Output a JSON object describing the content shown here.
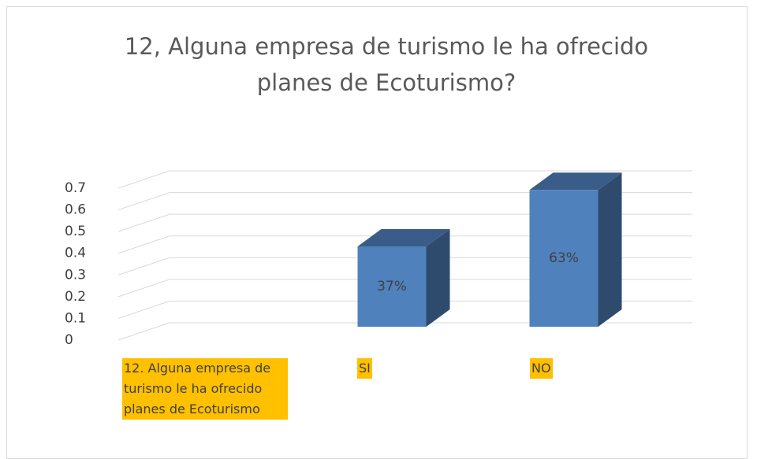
{
  "chart_data": {
    "type": "bar3d",
    "title": "12, Alguna empresa de turismo le ha ofrecido planes de Ecoturismo?",
    "categories": [
      "12.  Alguna empresa de turismo le ha ofrecido planes de Ecoturismo",
      "SI",
      "NO"
    ],
    "values": [
      null,
      0.37,
      0.63
    ],
    "value_labels": [
      null,
      "37%",
      "63%"
    ],
    "color": "#4f81bd",
    "ylim": [
      0,
      0.7
    ],
    "yticks": [
      0,
      0.1,
      0.2,
      0.3,
      0.4,
      0.5,
      0.6,
      0.7
    ],
    "grid": true
  }
}
